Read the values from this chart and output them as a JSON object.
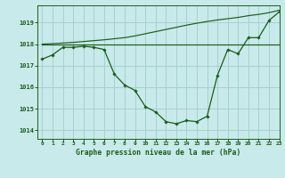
{
  "title": "Graphe pression niveau de la mer (hPa)",
  "bg_color": "#c8eaea",
  "grid_color": "#a8d0d0",
  "line_color": "#1a5c1a",
  "marker_color": "#1a5c1a",
  "xlim": [
    -0.5,
    23
  ],
  "ylim": [
    1013.6,
    1019.8
  ],
  "yticks": [
    1014,
    1015,
    1016,
    1017,
    1018,
    1019
  ],
  "xticks": [
    0,
    1,
    2,
    3,
    4,
    5,
    6,
    7,
    8,
    9,
    10,
    11,
    12,
    13,
    14,
    15,
    16,
    17,
    18,
    19,
    20,
    21,
    22,
    23
  ],
  "hours": [
    0,
    1,
    2,
    3,
    4,
    5,
    6,
    7,
    8,
    9,
    10,
    11,
    12,
    13,
    14,
    15,
    16,
    17,
    18,
    19,
    20,
    21,
    22,
    23
  ],
  "pressure_actual": [
    1017.3,
    1017.5,
    1017.85,
    1017.85,
    1017.9,
    1017.85,
    1017.75,
    1016.6,
    1016.1,
    1015.85,
    1015.1,
    1014.85,
    1014.4,
    1014.3,
    1014.45,
    1014.4,
    1014.65,
    1016.55,
    1017.75,
    1017.55,
    1018.3,
    1018.3,
    1019.1,
    1019.5
  ],
  "pressure_flat": [
    1018.0,
    1018.0,
    1018.0,
    1018.0,
    1018.0,
    1018.0,
    1018.0,
    1018.0,
    1018.0,
    1018.0,
    1018.0,
    1018.0,
    1018.0,
    1018.0,
    1018.0,
    1018.0,
    1018.0,
    1018.0,
    1018.0,
    1018.0,
    1018.0,
    1018.0,
    1018.0,
    1018.0
  ],
  "pressure_rising": [
    1018.0,
    1018.02,
    1018.05,
    1018.08,
    1018.12,
    1018.16,
    1018.2,
    1018.25,
    1018.3,
    1018.38,
    1018.48,
    1018.58,
    1018.68,
    1018.78,
    1018.88,
    1018.97,
    1019.05,
    1019.12,
    1019.18,
    1019.24,
    1019.32,
    1019.38,
    1019.46,
    1019.57
  ]
}
